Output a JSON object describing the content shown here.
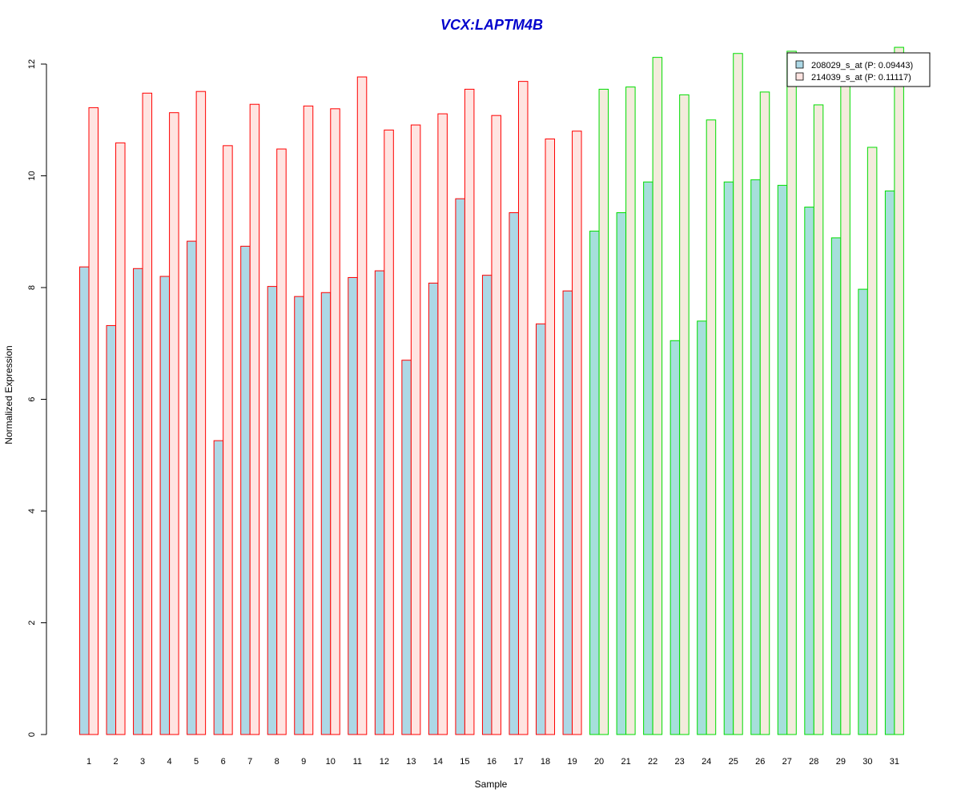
{
  "chart_data": {
    "type": "bar",
    "title": "VCX:LAPTM4B",
    "xlabel": "Sample",
    "ylabel": "Normalized Expression",
    "ylim": [
      0,
      12
    ],
    "yticks": [
      "0",
      "2",
      "4",
      "6",
      "8",
      "10",
      "12"
    ],
    "categories": [
      "1",
      "2",
      "3",
      "4",
      "5",
      "6",
      "7",
      "8",
      "9",
      "10",
      "11",
      "12",
      "13",
      "14",
      "15",
      "16",
      "17",
      "18",
      "19",
      "20",
      "21",
      "22",
      "23",
      "24",
      "25",
      "26",
      "27",
      "28",
      "29",
      "30",
      "31"
    ],
    "series": [
      {
        "name": "208029_s_at (P: 0.09443)",
        "values": [
          8.37,
          7.32,
          8.34,
          8.2,
          8.83,
          5.26,
          8.74,
          8.02,
          7.84,
          7.91,
          8.18,
          8.3,
          6.7,
          8.08,
          9.59,
          8.22,
          9.34,
          7.35,
          7.94,
          9.01,
          9.34,
          9.89,
          7.05,
          7.4,
          9.89,
          9.93,
          9.83,
          9.44,
          8.89,
          7.97,
          9.73
        ]
      },
      {
        "name": "214039_s_at (P: 0.11117)",
        "values": [
          11.22,
          10.59,
          11.48,
          11.13,
          11.51,
          10.54,
          11.28,
          10.48,
          11.25,
          11.2,
          11.77,
          10.82,
          10.91,
          11.11,
          11.55,
          11.08,
          11.69,
          10.66,
          10.8,
          11.55,
          11.59,
          12.12,
          11.45,
          11.0,
          12.19,
          11.5,
          12.23,
          11.27,
          11.7,
          10.51,
          12.3
        ]
      }
    ],
    "groups": [
      {
        "from": 1,
        "to": 19,
        "border_color": "#ff0000"
      },
      {
        "from": 20,
        "to": 31,
        "border_color": "#00dd00"
      }
    ],
    "colors": {
      "group1_series1_fill": "#add8e6",
      "group1_series2_fill": "#ffe4e1",
      "group2_series1_fill": "#a6dfdb",
      "group2_series2_fill": "#f3ebdc",
      "title_color": "#0000cc"
    },
    "legend_placement": "top-right",
    "grid": false
  }
}
